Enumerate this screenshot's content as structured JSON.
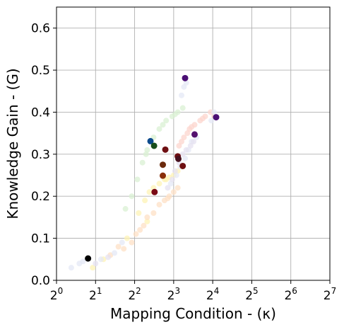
{
  "chart_data": {
    "type": "scatter",
    "title": "",
    "xlabel": "Mapping Condition - (κ)",
    "ylabel": "Knowledge Gain - (G)",
    "x_scale": "log2",
    "xlim": [
      1,
      128
    ],
    "ylim": [
      0,
      0.65
    ],
    "x_ticks": [
      {
        "value": 1,
        "base": "2",
        "exp": "0"
      },
      {
        "value": 2,
        "base": "2",
        "exp": "1"
      },
      {
        "value": 4,
        "base": "2",
        "exp": "2"
      },
      {
        "value": 8,
        "base": "2",
        "exp": "3"
      },
      {
        "value": 16,
        "base": "2",
        "exp": "4"
      },
      {
        "value": 32,
        "base": "2",
        "exp": "5"
      },
      {
        "value": 64,
        "base": "2",
        "exp": "6"
      },
      {
        "value": 128,
        "base": "2",
        "exp": "7"
      }
    ],
    "y_ticks": [
      {
        "value": 0.0,
        "label": "0.0"
      },
      {
        "value": 0.1,
        "label": "0.1"
      },
      {
        "value": 0.2,
        "label": "0.2"
      },
      {
        "value": 0.3,
        "label": "0.3"
      },
      {
        "value": 0.4,
        "label": "0.4"
      },
      {
        "value": 0.5,
        "label": "0.5"
      },
      {
        "value": 0.6,
        "label": "0.6"
      }
    ],
    "grid": true,
    "legend": "none",
    "highlighted_points": [
      {
        "x": 1.75,
        "y": 0.052,
        "color": "#000000"
      },
      {
        "x": 9.8,
        "y": 0.481,
        "color": "#4b0f74"
      },
      {
        "x": 17.0,
        "y": 0.388,
        "color": "#4b0f74"
      },
      {
        "x": 11.6,
        "y": 0.347,
        "color": "#54106e"
      },
      {
        "x": 5.3,
        "y": 0.331,
        "color": "#0c4a8c"
      },
      {
        "x": 5.65,
        "y": 0.32,
        "color": "#174d1b"
      },
      {
        "x": 6.9,
        "y": 0.311,
        "color": "#6e0f12"
      },
      {
        "x": 8.6,
        "y": 0.295,
        "color": "#6e0f12"
      },
      {
        "x": 8.7,
        "y": 0.289,
        "color": "#46101e"
      },
      {
        "x": 9.4,
        "y": 0.272,
        "color": "#6e0f12"
      },
      {
        "x": 6.6,
        "y": 0.275,
        "color": "#6b2a0c"
      },
      {
        "x": 6.6,
        "y": 0.249,
        "color": "#8a2e08"
      },
      {
        "x": 5.7,
        "y": 0.21,
        "color": "#7a0a16"
      }
    ],
    "faint_series": [
      {
        "color": "#d9f0d3",
        "points": [
          [
            3.8,
            0.2
          ],
          [
            4.2,
            0.24
          ],
          [
            4.6,
            0.28
          ],
          [
            5.0,
            0.31
          ],
          [
            5.6,
            0.34
          ],
          [
            6.2,
            0.36
          ],
          [
            7.0,
            0.38
          ],
          [
            7.8,
            0.39
          ],
          [
            8.6,
            0.4
          ],
          [
            9.4,
            0.41
          ],
          [
            5.3,
            0.33
          ],
          [
            6.6,
            0.37
          ],
          [
            8.2,
            0.395
          ],
          [
            3.4,
            0.17
          ],
          [
            4.9,
            0.3
          ]
        ]
      },
      {
        "color": "#fcd5ce",
        "points": [
          [
            8.8,
            0.32
          ],
          [
            9.6,
            0.34
          ],
          [
            10.6,
            0.36
          ],
          [
            11.6,
            0.37
          ],
          [
            12.8,
            0.38
          ],
          [
            14.0,
            0.39
          ],
          [
            15.4,
            0.4
          ],
          [
            16.4,
            0.39
          ],
          [
            9.2,
            0.33
          ],
          [
            10.2,
            0.35
          ],
          [
            13.4,
            0.385
          ],
          [
            11.0,
            0.365
          ]
        ]
      },
      {
        "color": "#fdf3b5",
        "points": [
          [
            5.6,
            0.22
          ],
          [
            6.2,
            0.23
          ],
          [
            6.8,
            0.24
          ],
          [
            7.4,
            0.245
          ],
          [
            8.0,
            0.25
          ],
          [
            8.6,
            0.26
          ],
          [
            9.2,
            0.27
          ],
          [
            5.2,
            0.21
          ],
          [
            4.8,
            0.19
          ],
          [
            7.0,
            0.24
          ],
          [
            3.5,
            0.1
          ],
          [
            2.3,
            0.05
          ],
          [
            1.9,
            0.03
          ],
          [
            4.3,
            0.16
          ],
          [
            5.0,
            0.14
          ]
        ]
      },
      {
        "color": "#fde0c5",
        "points": [
          [
            6.2,
            0.18
          ],
          [
            6.8,
            0.19
          ],
          [
            7.4,
            0.2
          ],
          [
            8.0,
            0.21
          ],
          [
            8.6,
            0.22
          ],
          [
            5.6,
            0.16
          ],
          [
            5.0,
            0.15
          ],
          [
            4.4,
            0.12
          ],
          [
            3.8,
            0.09
          ],
          [
            3.3,
            0.075
          ],
          [
            2.6,
            0.06
          ],
          [
            3.0,
            0.08
          ],
          [
            4.1,
            0.11
          ],
          [
            4.7,
            0.13
          ],
          [
            7.2,
            0.195
          ]
        ]
      },
      {
        "color": "#e4e8f5",
        "points": [
          [
            9.6,
            0.46
          ],
          [
            9.2,
            0.44
          ],
          [
            10.0,
            0.47
          ],
          [
            15.6,
            0.38
          ],
          [
            16.4,
            0.4
          ],
          [
            12.0,
            0.34
          ],
          [
            11.0,
            0.33
          ],
          [
            10.4,
            0.31
          ],
          [
            9.8,
            0.29
          ],
          [
            9.0,
            0.27
          ],
          [
            8.4,
            0.25
          ],
          [
            7.6,
            0.23
          ],
          [
            1.5,
            0.04
          ],
          [
            1.3,
            0.03
          ],
          [
            2.2,
            0.05
          ],
          [
            2.8,
            0.065
          ],
          [
            1.6,
            0.045
          ],
          [
            3.2,
            0.09
          ]
        ]
      },
      {
        "color": "#e6e2f0",
        "points": [
          [
            9.4,
            0.3
          ],
          [
            10.0,
            0.31
          ],
          [
            10.8,
            0.32
          ],
          [
            11.4,
            0.33
          ],
          [
            8.8,
            0.28
          ],
          [
            8.2,
            0.26
          ],
          [
            7.8,
            0.24
          ],
          [
            7.2,
            0.22
          ],
          [
            2.0,
            0.04
          ],
          [
            2.5,
            0.055
          ]
        ]
      }
    ]
  }
}
